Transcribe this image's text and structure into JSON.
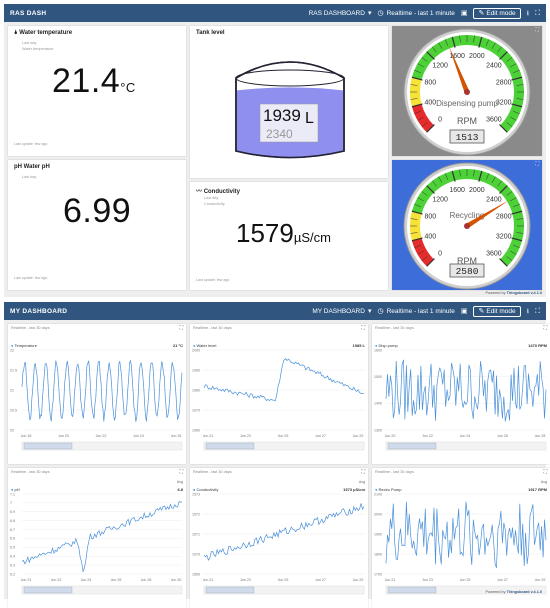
{
  "ras": {
    "title": "RAS DASH",
    "dashboard_select": "RAS DASHBOARD",
    "timewindow": "Realtime - last 1 minute",
    "edit_label": "Edit mode",
    "powered_prefix": "Powered by ",
    "powered_brand": "Thingsboard v.4.1.0",
    "water_temp": {
      "title": "Water temperature",
      "sub1": "Last day",
      "sub2": "Water temperature",
      "value": "21.4",
      "unit": "°C",
      "last_update": "Last update: few ago",
      "glyph": "🌢"
    },
    "tank": {
      "title": "Tank level",
      "value": "1939",
      "unit": "L",
      "capacity": "2340",
      "fill_fraction": 0.83
    },
    "dispensing": {
      "label": "Dispensing pump",
      "unit": "RPM",
      "readout": "1513",
      "value": 1513,
      "min": 0,
      "max": 3600,
      "ticks": [
        "0",
        "400",
        "800",
        "1200",
        "1600",
        "2000",
        "2400",
        "2800",
        "3200",
        "3600"
      ]
    },
    "water_ph": {
      "title": "Water pH",
      "sub1": "Last day",
      "value": "6.99",
      "last_update": "Last update: few ago",
      "glyph": "pH"
    },
    "conductivity": {
      "title": "Conductivity",
      "sub1": "Last day",
      "sub2": "Conductivity",
      "value": "1579",
      "unit": "µS/cm",
      "last_update": "Last update: few ago",
      "glyph": "〰"
    },
    "recycling": {
      "label": "Recycling",
      "unit": "RPM",
      "readout": "2580",
      "value": 2580,
      "min": 0,
      "max": 3600,
      "ticks": [
        "0",
        "400",
        "800",
        "1200",
        "1600",
        "2000",
        "2400",
        "2800",
        "3200",
        "3600"
      ]
    }
  },
  "my": {
    "title": "MY DASHBOARD",
    "dashboard_select": "MY DASHBOARD",
    "timewindow": "Realtime - last 1 minute",
    "edit_label": "Edit mode",
    "powered_prefix": "Powered by ",
    "powered_brand": "Thingsboard v.4.1.0",
    "avg_label": "Avg",
    "charts": [
      {
        "window": "Realtime - last 30 days",
        "legend": "Temperature",
        "value": "21 °C",
        "yticks": [
          "22",
          "21.5",
          "21",
          "20.5",
          "20"
        ],
        "xticks": [
          "Jun 18",
          "Jun 20",
          "Jun 22",
          "Jun 24",
          "Jun 26"
        ]
      },
      {
        "window": "Realtime - last 30 days",
        "legend": "Water level",
        "value": "1985 L",
        "yticks": [
          "2000",
          "1990",
          "1980",
          "1970",
          "1960"
        ],
        "xticks": [
          "Jun 21",
          "Jun 23",
          "Jun 25",
          "Jun 27",
          "Jun 29"
        ]
      },
      {
        "window": "Realtime - last 30 days",
        "legend": "Disp pump",
        "value": "1470 RPM",
        "yticks": [
          "1600",
          "1500",
          "1400",
          "1300"
        ],
        "xticks": [
          "Jun 20",
          "Jun 22",
          "Jun 24",
          "Jun 26",
          "Jun 28"
        ]
      },
      {
        "window": "Realtime - last 30 days",
        "legend": "pH",
        "value": "6.8",
        "yticks": [
          "7.1",
          "7",
          "6.9",
          "6.8",
          "6.7",
          "6.6",
          "6.5",
          "6.4",
          "6.3",
          "6.2"
        ],
        "xticks": [
          "Jun 21",
          "Jun 22",
          "Jun 24",
          "Jun 26",
          "Jun 28",
          "Jun 30"
        ]
      },
      {
        "window": "Realtime - last 30 days",
        "legend": "Conductivity",
        "value": "1573 µS/cm",
        "yticks": [
          "1573",
          "1572",
          "1571",
          "1570",
          "1569"
        ],
        "xticks": [
          "Jun 21",
          "Jun 23",
          "Jun 25",
          "Jun 27",
          "Jun 29"
        ]
      },
      {
        "window": "Realtime - last 30 days",
        "legend": "Recirc Pump",
        "value": "1917 RPM",
        "yticks": [
          "2100",
          "2000",
          "1900",
          "1800",
          "1700"
        ],
        "xticks": [
          "Jun 21",
          "Jun 23",
          "Jun 25",
          "Jun 27",
          "Jun 29"
        ]
      }
    ]
  },
  "colors": {
    "topbar": "#305680",
    "line": "#4a90d9",
    "tank": "#8f8ff0",
    "gauge_green": "#4cd137",
    "gauge_yellow": "#f7e338",
    "gauge_red": "#e52b2b",
    "needle": "#d35400",
    "recycle_bg": "#3d6dd8"
  }
}
